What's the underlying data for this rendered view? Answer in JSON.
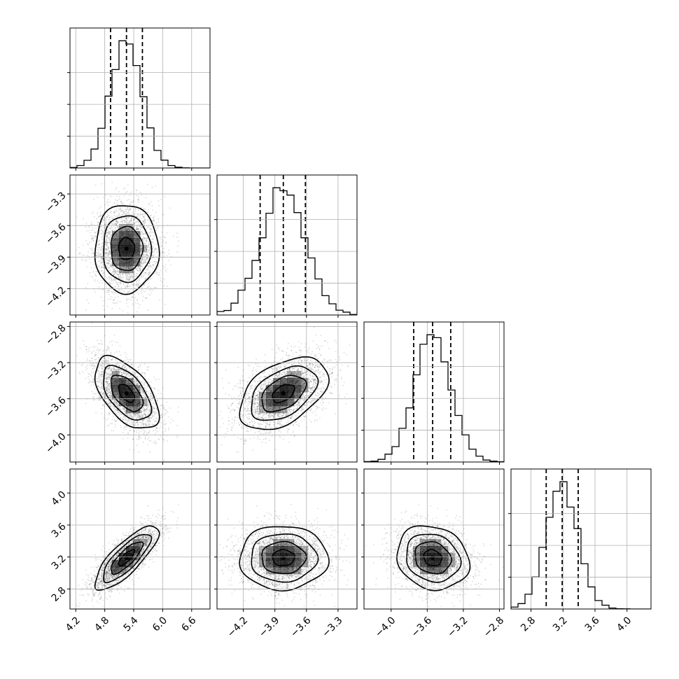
{
  "chart_data": {
    "type": "corner",
    "title": "",
    "parameters": [
      {
        "mean": 5.25,
        "sd": 0.33,
        "range": [
          4.08,
          6.98
        ],
        "quantiles": [
          4.92,
          5.25,
          5.58
        ],
        "ticks": [
          4.2,
          4.8,
          5.4,
          6.0,
          6.6
        ],
        "tick_labels": [
          "4.2",
          "4.8",
          "5.4",
          "6.0",
          "6.6"
        ]
      },
      {
        "mean": -3.82,
        "sd": 0.21,
        "range": [
          -4.45,
          -3.12
        ],
        "quantiles": [
          -4.04,
          -3.82,
          -3.61
        ],
        "ticks": [
          -4.2,
          -3.9,
          -3.6,
          -3.3
        ],
        "tick_labels": [
          "−4.2",
          "−3.9",
          "−3.6",
          "−3.3"
        ]
      },
      {
        "mean": -3.54,
        "sd": 0.2,
        "range": [
          -4.3,
          -2.75
        ],
        "quantiles": [
          -3.75,
          -3.54,
          -3.34
        ],
        "ticks": [
          -4.0,
          -3.6,
          -3.2,
          -2.8
        ],
        "tick_labels": [
          "−4.0",
          "−3.6",
          "−3.2",
          "−2.8"
        ]
      },
      {
        "mean": 3.19,
        "sd": 0.2,
        "range": [
          2.55,
          4.3
        ],
        "quantiles": [
          2.99,
          3.19,
          3.39
        ],
        "ticks": [
          2.8,
          3.2,
          3.6,
          4.0
        ],
        "tick_labels": [
          "2.8",
          "3.2",
          "3.6",
          "4.0"
        ]
      }
    ],
    "histogram_bins": 20,
    "correlations": [
      [
        1.0,
        0.0,
        -0.55,
        0.8
      ],
      [
        0.0,
        1.0,
        0.45,
        0.0
      ],
      [
        -0.55,
        0.45,
        1.0,
        -0.15
      ],
      [
        0.8,
        0.0,
        -0.15,
        1.0
      ]
    ],
    "contour_levels_sigma": [
      0.5,
      1.0,
      1.5,
      2.0
    ],
    "grid": true
  }
}
